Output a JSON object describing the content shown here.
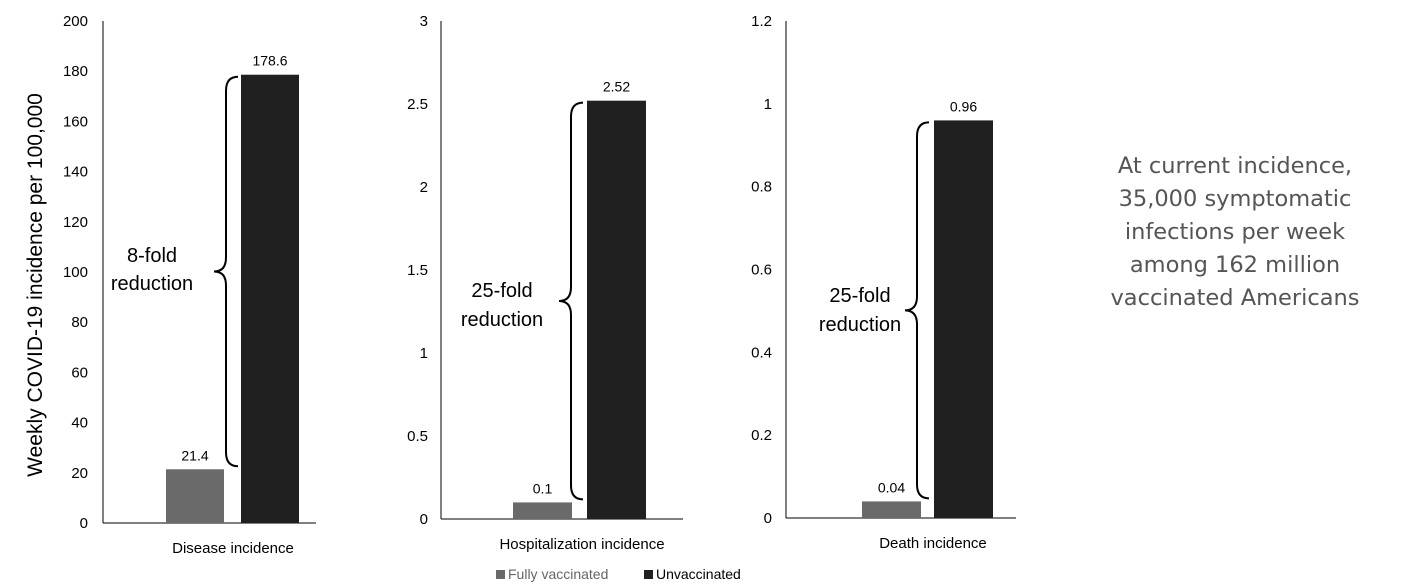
{
  "y_axis_title": "Weekly COVID-19 incidence per 100,000",
  "series_names": [
    "Fully vaccinated",
    "Unvaccinated"
  ],
  "colors": {
    "fully_vaccinated": "#6a6a6a",
    "unvaccinated": "#202020",
    "axis": "#000000",
    "callout_text": "#555555"
  },
  "callout": {
    "lines": [
      "At current incidence,",
      "35,000 symptomatic",
      "infections per week",
      "among 162 million",
      "vaccinated Americans"
    ]
  },
  "chart_data": [
    {
      "type": "bar",
      "categories": [
        "Disease incidence"
      ],
      "ylabel": "Weekly COVID-19 incidence per 100,000",
      "ylim": [
        0,
        200
      ],
      "yticks": [
        "0",
        "20",
        "40",
        "60",
        "80",
        "100",
        "120",
        "140",
        "160",
        "180",
        "200"
      ],
      "series": [
        {
          "name": "Fully vaccinated",
          "values": [
            21.4
          ],
          "labels": [
            "21.4"
          ]
        },
        {
          "name": "Unvaccinated",
          "values": [
            178.6
          ],
          "labels": [
            "178.6"
          ]
        }
      ],
      "annotation": {
        "lines": [
          "8-fold",
          "reduction"
        ]
      }
    },
    {
      "type": "bar",
      "categories": [
        "Hospitalization incidence"
      ],
      "ylim": [
        0,
        3
      ],
      "yticks": [
        "0",
        "0.5",
        "1",
        "1.5",
        "2",
        "2.5",
        "3"
      ],
      "series": [
        {
          "name": "Fully vaccinated",
          "values": [
            0.1
          ],
          "labels": [
            "0.1"
          ]
        },
        {
          "name": "Unvaccinated",
          "values": [
            2.52
          ],
          "labels": [
            "2.52"
          ]
        }
      ],
      "annotation": {
        "lines": [
          "25-fold",
          "reduction"
        ]
      }
    },
    {
      "type": "bar",
      "categories": [
        "Death incidence"
      ],
      "ylim": [
        0,
        1.2
      ],
      "yticks": [
        "0",
        "0.2",
        "0.4",
        "0.6",
        "0.8",
        "1",
        "1.2"
      ],
      "series": [
        {
          "name": "Fully vaccinated",
          "values": [
            0.04
          ],
          "labels": [
            "0.04"
          ]
        },
        {
          "name": "Unvaccinated",
          "values": [
            0.96
          ],
          "labels": [
            "0.96"
          ]
        }
      ],
      "annotation": {
        "lines": [
          "25-fold",
          "reduction"
        ]
      }
    }
  ]
}
